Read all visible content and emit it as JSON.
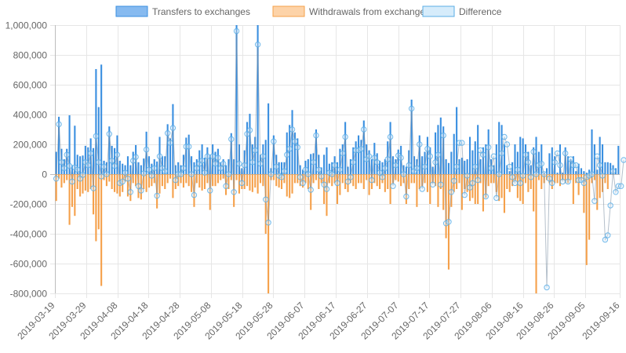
{
  "chart_data": {
    "type": "bar",
    "legend_position": "top",
    "grid": true,
    "ylim": [
      -800000,
      1000000
    ],
    "y_ticks": [
      1000000,
      800000,
      600000,
      400000,
      200000,
      0,
      -200000,
      -400000,
      -600000,
      -800000
    ],
    "y_tick_labels": [
      "1,000,000",
      "800,000",
      "600,000",
      "400,000",
      "200,000",
      "0",
      "-200,000",
      "-400,000",
      "-600,000",
      "-800,000"
    ],
    "x_start": "2019-03-19",
    "x_end": "2019-09-16",
    "x_ticks": [
      "2019-03-19",
      "2019-03-29",
      "2019-04-08",
      "2019-04-18",
      "2019-04-28",
      "2019-05-08",
      "2019-05-18",
      "2019-05-28",
      "2019-06-07",
      "2019-06-17",
      "2019-06-27",
      "2019-07-07",
      "2019-07-17",
      "2019-07-27",
      "2019-08-06",
      "2019-08-16",
      "2019-08-26",
      "2019-09-05",
      "2019-09-16"
    ],
    "series": [
      {
        "name": "Transfers to exchanges",
        "type": "bar",
        "color": "#3a8fe0",
        "fill": "#86baf0",
        "values": [
          150000,
          385000,
          170000,
          100000,
          170000,
          395000,
          60000,
          325000,
          130000,
          120000,
          125000,
          190000,
          180000,
          240000,
          175000,
          705000,
          450000,
          735000,
          90000,
          80000,
          320000,
          190000,
          175000,
          260000,
          90000,
          70000,
          60000,
          120000,
          60000,
          150000,
          195000,
          80000,
          60000,
          105000,
          285000,
          120000,
          70000,
          100000,
          85000,
          250000,
          120000,
          120000,
          335000,
          240000,
          470000,
          60000,
          80000,
          60000,
          130000,
          245000,
          265000,
          120000,
          80000,
          100000,
          160000,
          200000,
          110000,
          180000,
          130000,
          200000,
          150000,
          170000,
          80000,
          100000,
          60000,
          100000,
          275000,
          100000,
          1000000,
          200000,
          40000,
          160000,
          350000,
          405000,
          200000,
          250000,
          1000000,
          130000,
          200000,
          230000,
          475000,
          40000,
          260000,
          130000,
          80000,
          80000,
          80000,
          280000,
          330000,
          430000,
          280000,
          240000,
          60000,
          30000,
          90000,
          100000,
          135000,
          140000,
          300000,
          130000,
          45000,
          130000,
          180000,
          70000,
          80000,
          120000,
          80000,
          170000,
          200000,
          350000,
          50000,
          100000,
          180000,
          220000,
          260000,
          230000,
          360000,
          200000,
          160000,
          100000,
          210000,
          140000,
          90000,
          80000,
          100000,
          220000,
          350000,
          120000,
          100000,
          165000,
          190000,
          60000,
          50000,
          160000,
          500000,
          120000,
          100000,
          260000,
          120000,
          150000,
          250000,
          180000,
          50000,
          280000,
          330000,
          380000,
          320000,
          100000,
          75000,
          150000,
          270000,
          450000,
          100000,
          110000,
          90000,
          100000,
          250000,
          160000,
          220000,
          330000,
          100000,
          180000,
          200000,
          300000,
          100000,
          60000,
          200000,
          350000,
          330000,
          200000,
          60000,
          20000,
          80000,
          200000,
          150000,
          250000,
          240000,
          200000,
          150000,
          60000,
          180000,
          250000,
          150000,
          200000,
          10000,
          40000,
          140000,
          180000,
          120000,
          10000,
          200000,
          10000,
          180000,
          120000,
          100000,
          120000,
          20000,
          70000,
          40000,
          20000,
          10000,
          30000,
          300000,
          200000,
          30000,
          250000,
          200000,
          80000,
          80000,
          75000,
          60000,
          40000,
          190000
        ]
      },
      {
        "name": "Withdrawals from exchanges",
        "type": "bar",
        "color": "#f5a04a",
        "fill": "#fdd3a8",
        "values": [
          -180000,
          -30000,
          -90000,
          -60000,
          -40000,
          -340000,
          -220000,
          -280000,
          -100000,
          -150000,
          -130000,
          -110000,
          -120000,
          -100000,
          -270000,
          -450000,
          -370000,
          -750000,
          -40000,
          -80000,
          -50000,
          -100000,
          -120000,
          -130000,
          -150000,
          -120000,
          -50000,
          -150000,
          -180000,
          -60000,
          -80000,
          -160000,
          -170000,
          -100000,
          -120000,
          -90000,
          -80000,
          -60000,
          -230000,
          -130000,
          -80000,
          -100000,
          -60000,
          -30000,
          -160000,
          -100000,
          -80000,
          -60000,
          -90000,
          -60000,
          -80000,
          -120000,
          -220000,
          -60000,
          -90000,
          -110000,
          -100000,
          -60000,
          -240000,
          -80000,
          -80000,
          -60000,
          -40000,
          -30000,
          -140000,
          -100000,
          -40000,
          -220000,
          -40000,
          -130000,
          -100000,
          -100000,
          -80000,
          -110000,
          -120000,
          -90000,
          -130000,
          -60000,
          -80000,
          -400000,
          -800000,
          -40000,
          -40000,
          -80000,
          -90000,
          -100000,
          -60000,
          -150000,
          -160000,
          -130000,
          -60000,
          -60000,
          -80000,
          -90000,
          -60000,
          -100000,
          -240000,
          -60000,
          -40000,
          -100000,
          -60000,
          -200000,
          -280000,
          -60000,
          -80000,
          -60000,
          -200000,
          -140000,
          -60000,
          -100000,
          -120000,
          -60000,
          -80000,
          -100000,
          -60000,
          -60000,
          -100000,
          -40000,
          -140000,
          -100000,
          -60000,
          -80000,
          -100000,
          -60000,
          -120000,
          -100000,
          -200000,
          -60000,
          -40000,
          -50000,
          -80000,
          -60000,
          -200000,
          -100000,
          -60000,
          -60000,
          -220000,
          -100000,
          -80000,
          -60000,
          -120000,
          -200000,
          -60000,
          -80000,
          -220000,
          -100000,
          -240000,
          -430000,
          -640000,
          -220000,
          -120000,
          -100000,
          -60000,
          -240000,
          -100000,
          -120000,
          -180000,
          -160000,
          -200000,
          -200000,
          -60000,
          -250000,
          -160000,
          -80000,
          -60000,
          -60000,
          -120000,
          -180000,
          -160000,
          -260000,
          -100000,
          -120000,
          -80000,
          -40000,
          -160000,
          -180000,
          -200000,
          -60000,
          -120000,
          -100000,
          -250000,
          -800000,
          -40000,
          -100000,
          -60000,
          -40000,
          -60000,
          -100000,
          -60000,
          -60000,
          -80000,
          -40000,
          -60000,
          -60000,
          -40000,
          -200000,
          -60000,
          -140000,
          -40000,
          -260000,
          -610000,
          -440000,
          -60000,
          -40000,
          -240000,
          -160000,
          -120000,
          -60000,
          -100000
        ]
      },
      {
        "name": "Difference",
        "type": "line",
        "color": "#5aaee6",
        "fill": "#d6ecfb",
        "values": [
          -30000,
          335000,
          80000,
          40000,
          130000,
          55000,
          -50000,
          45000,
          30000,
          -30000,
          -5000,
          80000,
          60000,
          140000,
          -95000,
          255000,
          80000,
          -15000,
          50000,
          0,
          270000,
          90000,
          55000,
          130000,
          -60000,
          -50000,
          10000,
          -30000,
          -120000,
          90000,
          115000,
          -80000,
          -110000,
          5000,
          165000,
          30000,
          -10000,
          40000,
          -145000,
          120000,
          40000,
          20000,
          275000,
          210000,
          310000,
          -40000,
          0,
          0,
          40000,
          185000,
          185000,
          0,
          -140000,
          40000,
          70000,
          90000,
          10000,
          120000,
          -110000,
          120000,
          70000,
          110000,
          40000,
          70000,
          -80000,
          0,
          235000,
          -120000,
          960000,
          70000,
          -60000,
          60000,
          270000,
          295000,
          80000,
          160000,
          870000,
          70000,
          120000,
          -170000,
          -325000,
          0,
          220000,
          50000,
          -10000,
          -20000,
          20000,
          130000,
          170000,
          300000,
          220000,
          180000,
          -20000,
          -60000,
          30000,
          0,
          -105000,
          80000,
          260000,
          30000,
          -15000,
          -70000,
          -100000,
          10000,
          0,
          60000,
          -60000,
          30000,
          140000,
          250000,
          -50000,
          -20000,
          80000,
          160000,
          160000,
          170000,
          300000,
          100000,
          120000,
          -40000,
          110000,
          80000,
          10000,
          -20000,
          40000,
          100000,
          250000,
          -80000,
          60000,
          125000,
          110000,
          0,
          -150000,
          60000,
          440000,
          20000,
          40000,
          200000,
          -100000,
          50000,
          170000,
          120000,
          -70000,
          80000,
          130000,
          -70000,
          260000,
          -330000,
          -320000,
          -120000,
          -45000,
          50000,
          210000,
          210000,
          -140000,
          -10000,
          -90000,
          -60000,
          50000,
          -40000,
          160000,
          130000,
          -150000,
          180000,
          40000,
          120000,
          -160000,
          0,
          140000,
          250000,
          200000,
          50000,
          -20000,
          -60000,
          30000,
          -60000,
          -10000,
          130000,
          80000,
          -20000,
          150000,
          0,
          60000,
          70000,
          0,
          -760000,
          -30000,
          -60000,
          80000,
          140000,
          60000,
          -50000,
          140000,
          -50000,
          100000,
          60000,
          60000,
          -40000,
          -40000,
          -60000,
          -20000,
          -10000,
          0,
          -180000,
          120000,
          60000,
          -10000,
          -440000,
          -410000,
          -210000,
          20000,
          -120000,
          -80000,
          -80000,
          95000
        ]
      }
    ]
  }
}
